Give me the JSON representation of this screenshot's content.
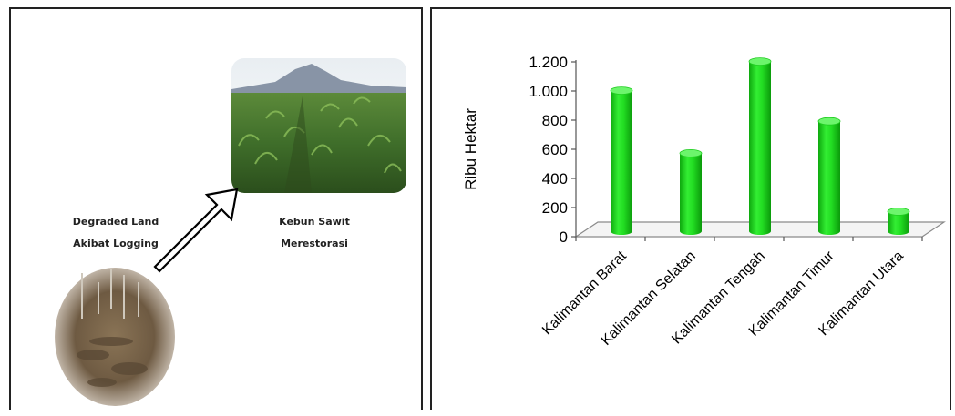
{
  "left_panel": {
    "caption_degraded_line1": "Degraded Land",
    "caption_degraded_line2": "Akibat Logging",
    "caption_palm_line1": "Kebun Sawit",
    "caption_palm_line2": "Merestorasi"
  },
  "chart_data": {
    "type": "bar",
    "categories": [
      "Kalimantan Barat",
      "Kalimantan Selatan",
      "Kalimantan Tengah",
      "Kalimantan Timur",
      "Kalimantan Utara"
    ],
    "values": [
      990,
      560,
      1190,
      780,
      160
    ],
    "ylabel": "Ribu Hektar",
    "xlabel": "",
    "title": "",
    "ylim": [
      0,
      1200
    ],
    "yticks": [
      0,
      200,
      400,
      600,
      800,
      1000,
      1200
    ],
    "ytick_labels": [
      "0",
      "200",
      "400",
      "600",
      "800",
      "1.000",
      "1.200"
    ],
    "bar_color": "#22dd22",
    "grid": false,
    "legend": "none"
  }
}
